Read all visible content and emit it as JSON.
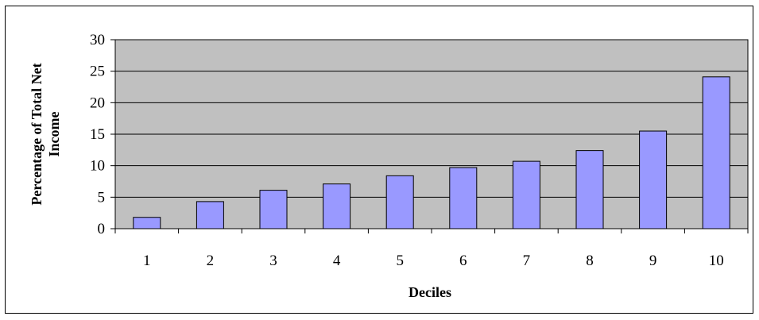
{
  "chart_data": {
    "type": "bar",
    "title": "",
    "xlabel": "Deciles",
    "ylabel_lines": [
      "Percentage of Total Net",
      "Income"
    ],
    "categories": [
      "1",
      "2",
      "3",
      "4",
      "5",
      "6",
      "7",
      "8",
      "9",
      "10"
    ],
    "values": [
      1.8,
      4.3,
      6.1,
      7.1,
      8.4,
      9.7,
      10.7,
      12.4,
      15.5,
      24.1
    ],
    "ylim": [
      0,
      30
    ],
    "yticks": [
      "0",
      "5",
      "10",
      "15",
      "20",
      "25",
      "30"
    ],
    "grid": true,
    "legend": "none",
    "colors": {
      "plot_background": "#c0c0c0",
      "bar_fill": "#9999ff",
      "bar_stroke": "#000000",
      "gridline": "#000000"
    }
  }
}
